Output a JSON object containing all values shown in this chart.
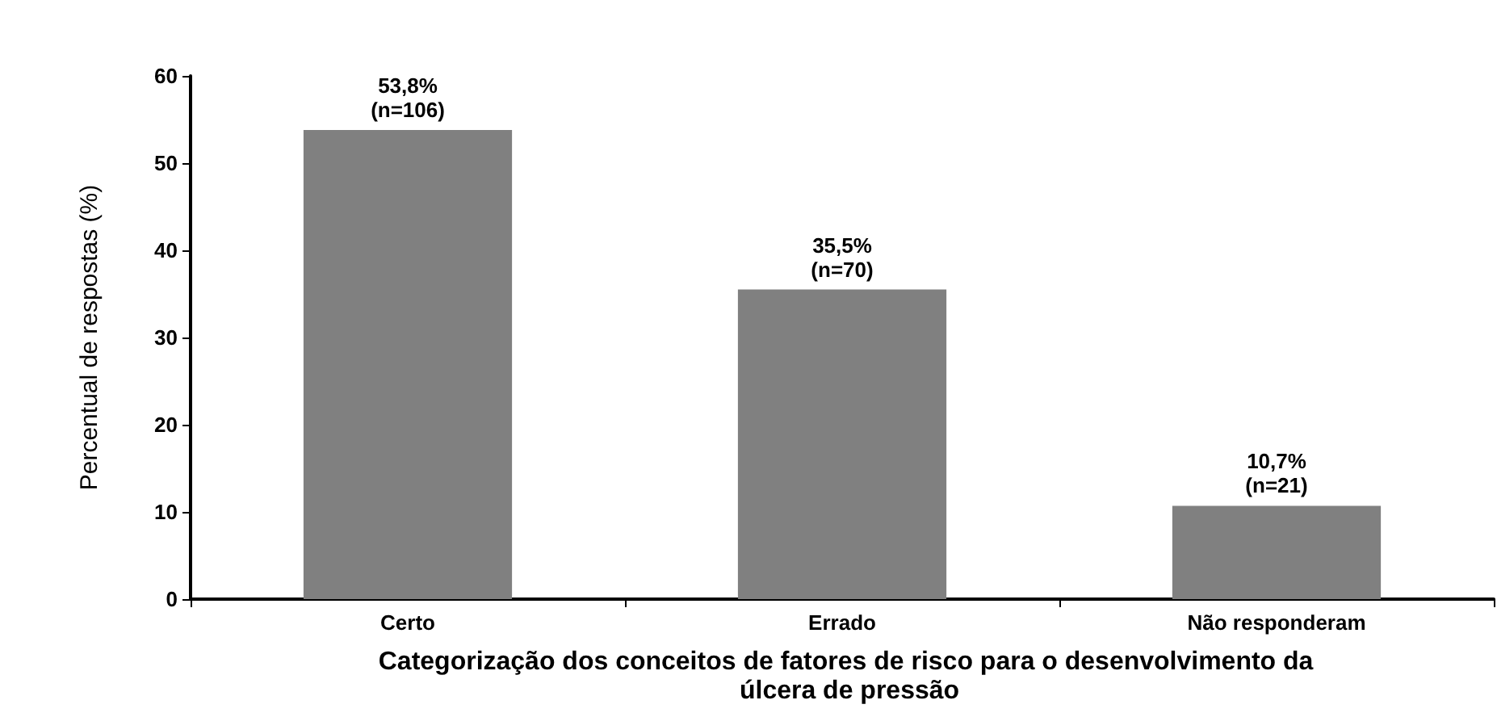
{
  "chart_data": {
    "type": "bar",
    "categories": [
      "Certo",
      "Errado",
      "Não responderam"
    ],
    "values": [
      53.8,
      35.5,
      10.7
    ],
    "color": "#808080",
    "value_labels": [
      "53,8%\n(n=106)",
      "35,5%\n(n=70)",
      "10,7%\n(n=21)"
    ],
    "xlabel": "Categorização dos conceitos de fatores de risco para o desenvolvimento da úlcera de pressão",
    "ylabel": "Percentual de respostas (%)",
    "ylim": [
      0,
      60
    ],
    "yticks": [
      0,
      10,
      20,
      30,
      40,
      50,
      60
    ],
    "grid": false
  }
}
